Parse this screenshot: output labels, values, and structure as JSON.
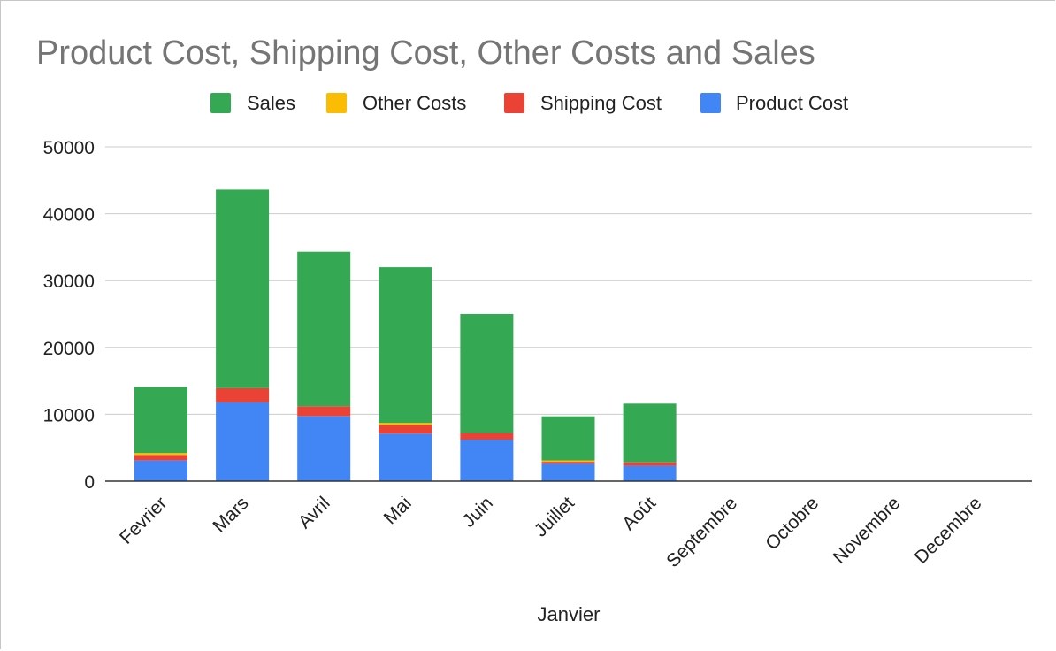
{
  "chart_data": {
    "type": "bar",
    "stacked": true,
    "title": "Product Cost, Shipping Cost, Other Costs and Sales",
    "xlabel": "Janvier",
    "ylabel": "",
    "ylim": [
      0,
      50000
    ],
    "yticks": [
      "0",
      "10000",
      "20000",
      "30000",
      "40000",
      "50000"
    ],
    "grid": true,
    "legend_position": "top",
    "categories": [
      "Fevrier",
      "Mars",
      "Avril",
      "Mai",
      "Juin",
      "Juillet",
      "Août",
      "Septembre",
      "Octobre",
      "Novembre",
      "Decembre"
    ],
    "legend": [
      {
        "name": "Sales",
        "color": "#34a853"
      },
      {
        "name": "Other Costs",
        "color": "#fbbc04"
      },
      {
        "name": "Shipping Cost",
        "color": "#ea4335"
      },
      {
        "name": "Product Cost",
        "color": "#4285f4"
      }
    ],
    "series": [
      {
        "name": "Product Cost",
        "color": "#4285f4",
        "values": [
          3100,
          11800,
          9700,
          7100,
          6200,
          2600,
          2300,
          0,
          0,
          0,
          0
        ]
      },
      {
        "name": "Shipping Cost",
        "color": "#ea4335",
        "values": [
          800,
          2100,
          1500,
          1300,
          1000,
          300,
          500,
          0,
          0,
          0,
          0
        ]
      },
      {
        "name": "Other Costs",
        "color": "#fbbc04",
        "values": [
          300,
          0,
          0,
          300,
          0,
          200,
          0,
          0,
          0,
          0,
          0
        ]
      },
      {
        "name": "Sales",
        "color": "#34a853",
        "values": [
          9900,
          29700,
          23100,
          23300,
          17800,
          6600,
          8800,
          0,
          0,
          0,
          0
        ]
      }
    ]
  }
}
